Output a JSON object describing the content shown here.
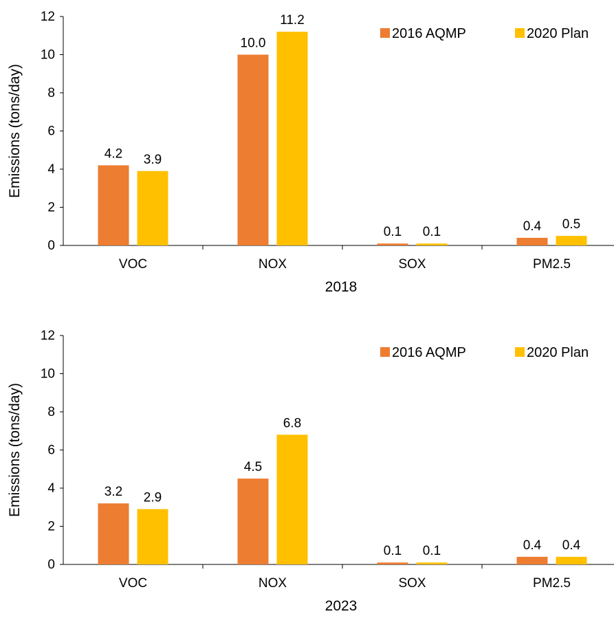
{
  "colors": {
    "series_2016": "#ED7D31",
    "series_2020": "#FFC000"
  },
  "chart_data": [
    {
      "type": "bar",
      "title": "",
      "xlabel": "2018",
      "ylabel": "Emissions (tons/day)",
      "ylim": [
        0,
        12
      ],
      "yticks": [
        0,
        2,
        4,
        6,
        8,
        10,
        12
      ],
      "grid": false,
      "legend_position": "top-right",
      "categories": [
        "VOC",
        "NOX",
        "SOX",
        "PM2.5"
      ],
      "series": [
        {
          "name": "2016 AQMP",
          "values": [
            4.2,
            10.0,
            0.1,
            0.4
          ],
          "labels": [
            "4.2",
            "10.0",
            "0.1",
            "0.4"
          ]
        },
        {
          "name": "2020 Plan",
          "values": [
            3.9,
            11.2,
            0.1,
            0.5
          ],
          "labels": [
            "3.9",
            "11.2",
            "0.1",
            "0.5"
          ]
        }
      ]
    },
    {
      "type": "bar",
      "title": "",
      "xlabel": "2023",
      "ylabel": "Emissions (tons/day)",
      "ylim": [
        0,
        12
      ],
      "yticks": [
        0,
        2,
        4,
        6,
        8,
        10,
        12
      ],
      "grid": false,
      "legend_position": "top-right",
      "categories": [
        "VOC",
        "NOX",
        "SOX",
        "PM2.5"
      ],
      "series": [
        {
          "name": "2016 AQMP",
          "values": [
            3.2,
            4.5,
            0.1,
            0.4
          ],
          "labels": [
            "3.2",
            "4.5",
            "0.1",
            "0.4"
          ]
        },
        {
          "name": "2020 Plan",
          "values": [
            2.9,
            6.8,
            0.1,
            0.4
          ],
          "labels": [
            "2.9",
            "6.8",
            "0.1",
            "0.4"
          ]
        }
      ]
    }
  ]
}
